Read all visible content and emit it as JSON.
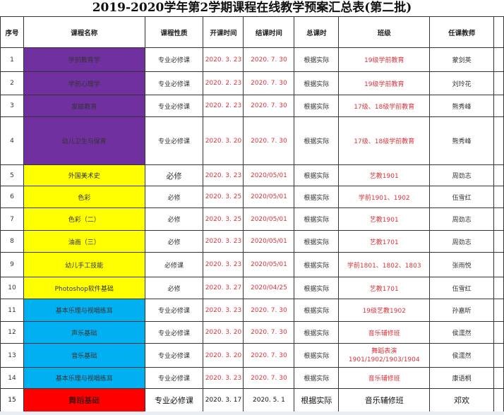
{
  "title": "2019-2020学年第2学期课程在线教学预案汇总表(第二批)",
  "headers": [
    "序号",
    "课程名称",
    "课程性质",
    "开课时间",
    "结课时间",
    "总课时",
    "班级",
    "任课教师"
  ],
  "colors": {
    "purple": "#7030a0",
    "yellow": "#ffff00",
    "blue": "#00b0f0",
    "red": "#ff0000",
    "text_red": "#d8343c"
  },
  "rows": [
    {
      "no": "1",
      "name": "学前教育学",
      "type": "专业必修课",
      "start": "2020. 3. 23",
      "end": "2020. 7. 30",
      "hours": "根据实际",
      "class": "19级学前教育",
      "teacher": "蒙剑英",
      "color": "#7030a0"
    },
    {
      "no": "2",
      "name": "学前心理学",
      "type": "专业必修课",
      "start": "2020. 2. 23",
      "end": "2020. 7. 30",
      "hours": "根据实际",
      "class": "19级学前教育",
      "teacher": "刘玲花",
      "color": "#7030a0"
    },
    {
      "no": "3",
      "name": "家庭教育",
      "type": "专业必修课",
      "start": "2020. 2. 23",
      "end": "2020. 7. 30",
      "hours": "根据实际",
      "class": "17级、18级学前教育",
      "teacher": "熊秀峰",
      "color": "#7030a0"
    },
    {
      "no": "4",
      "name": "幼儿卫生与保育",
      "type": "专业必修课",
      "start": "2020. 3. 20",
      "end": "2020. 7. 30",
      "hours": "根据实际",
      "class": "17级、18级学前教育",
      "teacher": "熊秀峰",
      "color": "#7030a0"
    },
    {
      "no": "5",
      "name": "外国美术史",
      "type": "必修",
      "start": "2020. 3. 23",
      "end": "2020/05/01",
      "hours": "根据实际",
      "class": "艺教1901",
      "teacher": "周劲志",
      "color": "#ffff00"
    },
    {
      "no": "6",
      "name": "色彩",
      "type": "必修",
      "start": "2020. 3. 25",
      "end": "2020/05/01",
      "hours": "根据实际",
      "class": "学前1901、1902",
      "teacher": "伍雪红",
      "color": "#ffff00"
    },
    {
      "no": "7",
      "name": "色彩（二）",
      "type": "必修",
      "start": "2020. 3. 25",
      "end": "2020/05/01",
      "hours": "根据实际",
      "class": "艺教1901",
      "teacher": "周劲志",
      "color": "#ffff00"
    },
    {
      "no": "8",
      "name": "油画（三）",
      "type": "必修",
      "start": "2020. 3. 23",
      "end": "2020/05/01",
      "hours": "根据实际",
      "class": "艺教1701",
      "teacher": "周劲志",
      "color": "#ffff00"
    },
    {
      "no": "9",
      "name": "幼儿手工技能",
      "type": "必修课",
      "start": "2020. 3. 23",
      "end": "2020/05/01",
      "hours": "根据实际",
      "class": "学前1801、1802、1803",
      "teacher": "张雨悦",
      "color": "#ffff00"
    },
    {
      "no": "10",
      "name": "Photoshop软件基础",
      "type": "必修",
      "start": "2020. 3. 27",
      "end": "2020/04/25",
      "hours": "根据实际",
      "class": "艺教1701",
      "teacher": "伍雪红",
      "color": "#ffff00"
    },
    {
      "no": "11",
      "name": "基本乐理与视唱练耳",
      "type": "专业必修课",
      "start": "2020. 3. 23",
      "end": "2020. 7. 30",
      "hours": "根据实际",
      "class": "19级艺教1902",
      "teacher": "孙嘉昕",
      "color": "#00b0f0"
    },
    {
      "no": "12",
      "name": "声乐基础",
      "type": "专业必修课",
      "start": "2020. 3. 20",
      "end": "2020. 7. 30",
      "hours": "根据实际",
      "class": "音乐辅修班",
      "teacher": "侯濡然",
      "color": "#00b0f0"
    },
    {
      "no": "13",
      "name": "音乐基础",
      "type": "专业必修课",
      "start": "2020. 3. 20",
      "end": "2020. 7. 30",
      "hours": "根据实际",
      "class": "舞蹈表演 1901/1902/1903/1904",
      "teacher": "侯濡然",
      "color": "#00b0f0"
    },
    {
      "no": "14",
      "name": "基本乐理与视唱练耳",
      "type": "专业必修课",
      "start": "2020. 3. 23",
      "end": "2020. 7. 30",
      "hours": "根据实际",
      "class": "音乐辅修班",
      "teacher": "康语桐",
      "color": "#00b0f0"
    },
    {
      "no": "15",
      "name": "舞蹈基础",
      "type": "专业必修课",
      "start": "2020. 3. 17",
      "end": "2020. 5. 1",
      "hours": "根据实际",
      "class": "音乐辅修班",
      "teacher": "邓欢",
      "color": "#ff0000"
    }
  ]
}
